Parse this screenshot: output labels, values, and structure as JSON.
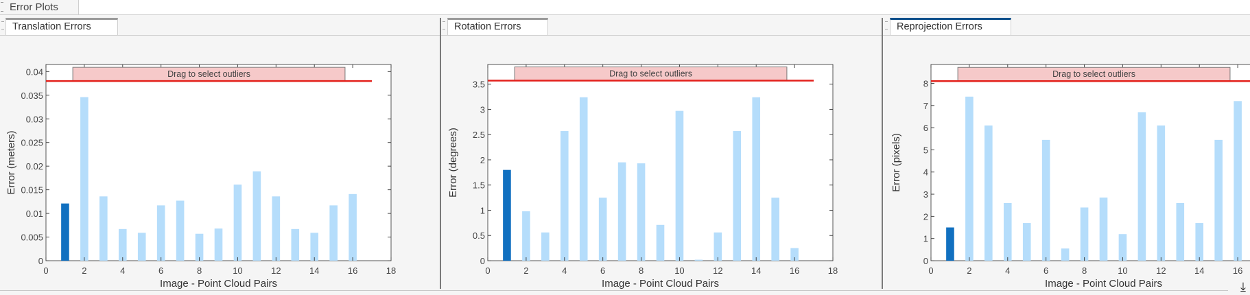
{
  "window": {
    "main_tab": "Error Plots"
  },
  "tabs": [
    {
      "label": "Translation Errors",
      "active": false
    },
    {
      "label": "Rotation Errors",
      "active": false
    },
    {
      "label": "Reprojection Errors",
      "active": true
    }
  ],
  "colors": {
    "selected_bar": "#1170c0",
    "bar": "#b5ddfb",
    "threshold": "#e3211c",
    "outlier_box": "#f6c9c9"
  },
  "icons": {
    "export": "export-download-icon"
  },
  "chart_data": [
    {
      "type": "bar",
      "xlabel": "Image - Point Cloud Pairs",
      "ylabel": "Error (meters)",
      "categories": [
        1,
        2,
        3,
        4,
        5,
        6,
        7,
        8,
        9,
        10,
        11,
        12,
        13,
        14,
        15,
        16
      ],
      "values": [
        0.0121,
        0.0346,
        0.0136,
        0.0067,
        0.0059,
        0.0117,
        0.0127,
        0.0057,
        0.0068,
        0.0161,
        0.0189,
        0.0136,
        0.0067,
        0.0059,
        0.0117,
        0.0141
      ],
      "selected": [
        1
      ],
      "xlim": [
        0,
        18
      ],
      "ylim": [
        0,
        0.0415
      ],
      "xticks": [
        "0",
        "2",
        "4",
        "6",
        "8",
        "10",
        "12",
        "14",
        "16",
        "18"
      ],
      "yticks": [
        "0",
        "0.005",
        "0.01",
        "0.015",
        "0.02",
        "0.025",
        "0.03",
        "0.035",
        "0.04"
      ],
      "threshold": 0.038,
      "outlier_label": "Drag to select outliers",
      "grid": false
    },
    {
      "type": "bar",
      "xlabel": "Image - Point Cloud Pairs",
      "ylabel": "Error (degrees)",
      "categories": [
        1,
        2,
        3,
        4,
        5,
        6,
        7,
        8,
        9,
        10,
        11,
        12,
        13,
        14,
        15,
        16
      ],
      "values": [
        1.8,
        0.98,
        0.56,
        2.57,
        3.24,
        1.25,
        1.95,
        1.93,
        0.71,
        2.97,
        0.02,
        0.56,
        2.57,
        3.24,
        1.25,
        0.25
      ],
      "selected": [
        1
      ],
      "xlim": [
        0,
        18
      ],
      "ylim": [
        0,
        3.89
      ],
      "xticks": [
        "0",
        "2",
        "4",
        "6",
        "8",
        "10",
        "12",
        "14",
        "16",
        "18"
      ],
      "yticks": [
        "0",
        "0.5",
        "1",
        "1.5",
        "2",
        "2.5",
        "3",
        "3.5"
      ],
      "threshold": 3.57,
      "outlier_label": "Drag to select outliers",
      "grid": false
    },
    {
      "type": "bar",
      "xlabel": "Image - Point Cloud Pairs",
      "ylabel": "Error (pixels)",
      "categories": [
        1,
        2,
        3,
        4,
        5,
        6,
        7,
        8,
        9,
        10,
        11,
        12,
        13,
        14,
        15,
        16
      ],
      "values": [
        1.5,
        7.4,
        6.1,
        2.6,
        1.7,
        5.45,
        0.55,
        2.4,
        2.85,
        1.2,
        6.7,
        6.1,
        2.6,
        1.7,
        5.45,
        7.2
      ],
      "selected": [
        1
      ],
      "xlim": [
        0,
        18
      ],
      "ylim": [
        0,
        8.85
      ],
      "xticks": [
        "0",
        "2",
        "4",
        "6",
        "8",
        "10",
        "12",
        "14",
        "16"
      ],
      "yticks": [
        "0",
        "1",
        "2",
        "3",
        "4",
        "5",
        "6",
        "7",
        "8"
      ],
      "threshold": 8.1,
      "outlier_label": "Drag to select outliers",
      "grid": false
    }
  ]
}
